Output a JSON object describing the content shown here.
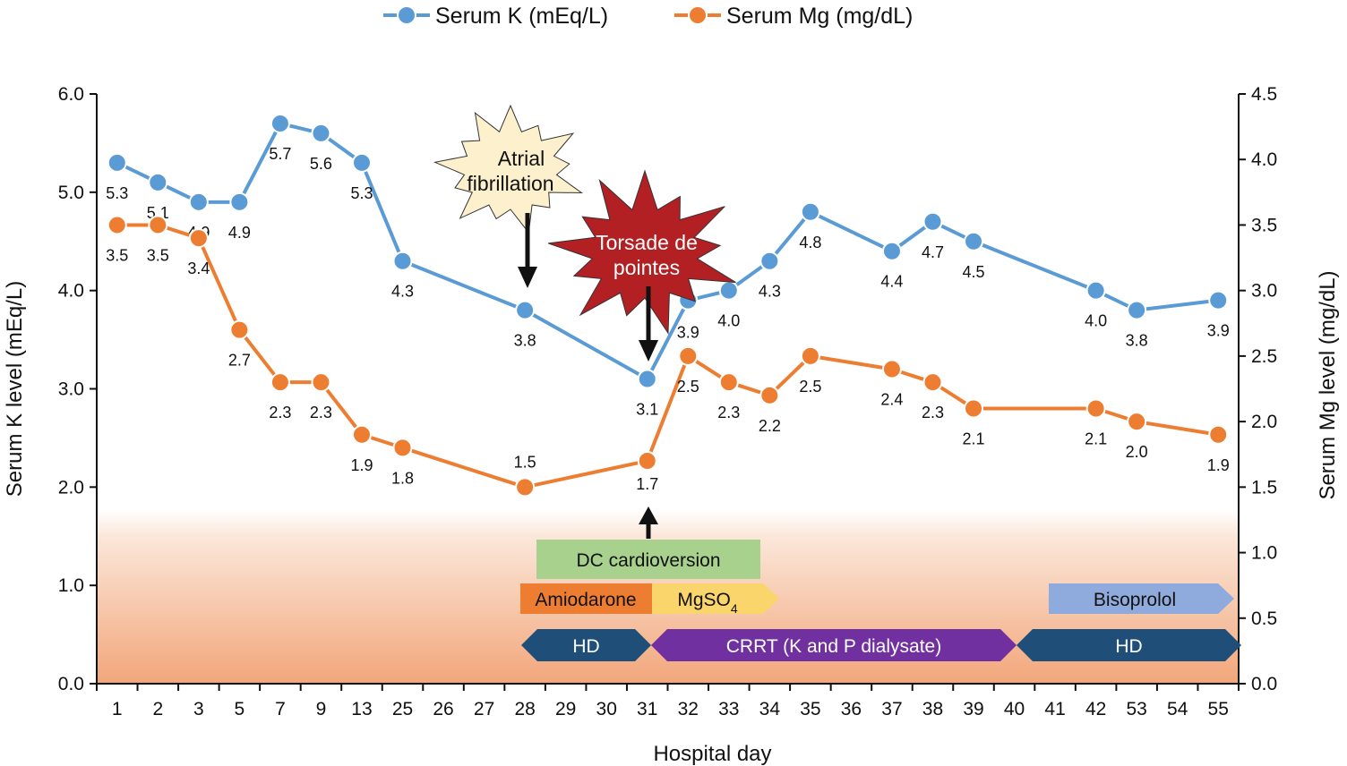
{
  "chart_data": {
    "type": "line",
    "xlabel": "Hospital day",
    "categories": [
      "1",
      "2",
      "3",
      "5",
      "7",
      "9",
      "13",
      "25",
      "26",
      "27",
      "28",
      "29",
      "30",
      "31",
      "32",
      "33",
      "34",
      "35",
      "36",
      "37",
      "38",
      "39",
      "40",
      "41",
      "42",
      "53",
      "54",
      "55"
    ],
    "y_left": {
      "label": "Serum K level (mEq/L)",
      "range": [
        0,
        6
      ],
      "ticks": [
        "0.0",
        "1.0",
        "2.0",
        "3.0",
        "4.0",
        "5.0",
        "6.0"
      ]
    },
    "y_right": {
      "label": "Serum Mg level (mg/dL)",
      "range": [
        0,
        4.5
      ],
      "ticks": [
        "0.0",
        "0.5",
        "1.0",
        "1.5",
        "2.0",
        "2.5",
        "3.0",
        "3.5",
        "4.0",
        "4.5"
      ]
    },
    "legend_position": "top-center",
    "series": [
      {
        "name": "Serum K (mEq/L)",
        "axis": "left",
        "color": "#5b9bd5",
        "x": [
          "1",
          "2",
          "3",
          "5",
          "7",
          "9",
          "13",
          "25",
          "28",
          "31",
          "32",
          "33",
          "34",
          "35",
          "37",
          "38",
          "39",
          "42",
          "53",
          "55"
        ],
        "values": [
          5.3,
          5.1,
          4.9,
          4.9,
          5.7,
          5.6,
          5.3,
          4.3,
          3.8,
          3.1,
          3.9,
          4.0,
          4.3,
          4.8,
          4.4,
          4.7,
          4.5,
          4.0,
          3.8,
          3.9
        ],
        "labels": [
          "5.3",
          "5.1",
          "4.9",
          "4.9",
          "5.7",
          "5.6",
          "5.3",
          "4.3",
          "3.8",
          "3.1",
          "3.9",
          "4.0",
          "4.3",
          "4.8",
          "4.4",
          "4.7",
          "4.5",
          "4.0",
          "3.8",
          "3.9"
        ]
      },
      {
        "name": "Serum Mg (mg/dL)",
        "axis": "right",
        "color": "#ed7d31",
        "x": [
          "1",
          "2",
          "3",
          "5",
          "7",
          "9",
          "13",
          "25",
          "28",
          "31",
          "32",
          "33",
          "34",
          "35",
          "37",
          "38",
          "39",
          "42",
          "53",
          "55"
        ],
        "values": [
          3.5,
          3.5,
          3.4,
          2.7,
          2.3,
          2.3,
          1.9,
          1.8,
          1.5,
          1.7,
          2.5,
          2.3,
          2.2,
          2.5,
          2.4,
          2.3,
          2.1,
          2.1,
          2.0,
          1.9
        ],
        "labels": [
          "3.5",
          "3.5",
          "3.4",
          "2.7",
          "2.3",
          "2.3",
          "1.9",
          "1.8",
          "1.5",
          "1.7",
          "2.5",
          "2.3",
          "2.2",
          "2.5",
          "2.4",
          "2.3",
          "2.1",
          "2.1",
          "2.0",
          "1.9"
        ]
      }
    ],
    "annotations": [
      {
        "text_lines": [
          "Atrial",
          "fibrillation"
        ],
        "at": "28",
        "color": "#fdf0cd"
      },
      {
        "text_lines": [
          "Torsade de",
          "pointes"
        ],
        "at": "31",
        "color": "#b22024"
      }
    ],
    "treatments": [
      {
        "label": "DC cardioversion",
        "from": "28",
        "to": "33",
        "color": "#a9d18e"
      },
      {
        "label": "Amiodarone",
        "from": "28",
        "to": "31",
        "color": "#ed7d31"
      },
      {
        "label": "MgSO",
        "subscript": "4",
        "from": "31",
        "to": "34",
        "color": "#f9d56b"
      },
      {
        "label": "Bisoprolol",
        "from": "41",
        "to": "55",
        "color": "#8faadc"
      },
      {
        "label": "HD",
        "from": "28",
        "to": "31",
        "color": "#1f4e79"
      },
      {
        "label": "CRRT (K and P dialysate)",
        "from": "31",
        "to": "40",
        "color": "#7030a0"
      },
      {
        "label": "HD",
        "from": "40",
        "to": "55",
        "color": "#1f4e79"
      }
    ]
  }
}
